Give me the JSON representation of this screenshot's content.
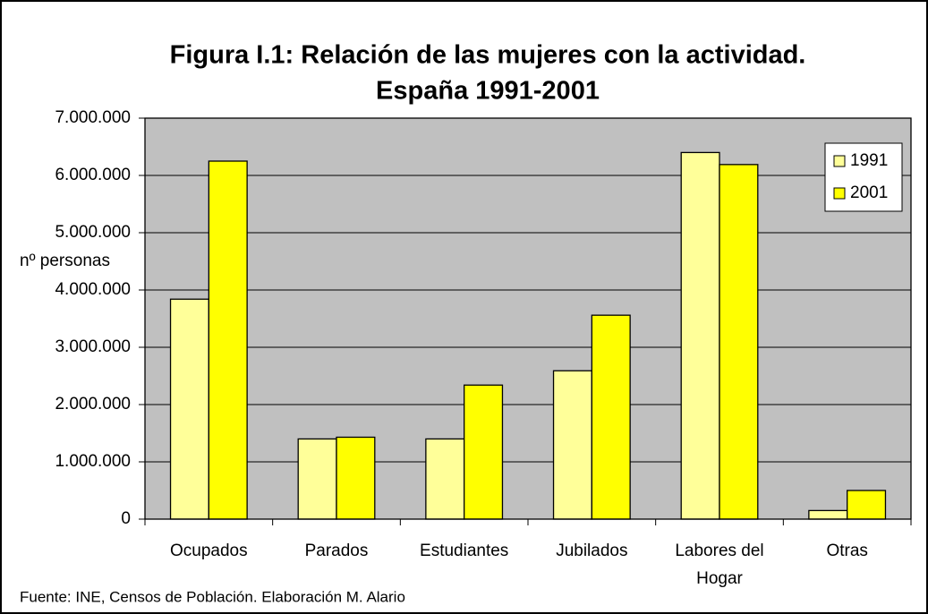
{
  "chart_data": {
    "type": "bar",
    "title": [
      "Figura I.1: Relación de las mujeres con la actividad.",
      "España 1991-2001"
    ],
    "y_label": "nº personas",
    "source": "Fuente: INE, Censos de Población. Elaboración M. Alario",
    "categories": [
      "Ocupados",
      "Parados",
      "Estudiantes",
      "Jubilados",
      "Labores del Hogar",
      "Otras"
    ],
    "series": [
      {
        "name": "1991",
        "color": "#ffff99",
        "values": [
          3840000,
          1400000,
          1400000,
          2590000,
          6400000,
          150000
        ]
      },
      {
        "name": "2001",
        "color": "#ffff00",
        "values": [
          6250000,
          1430000,
          2340000,
          3560000,
          6190000,
          500000
        ]
      }
    ],
    "ylim": [
      0,
      7000000
    ],
    "yticks": [
      0,
      {
        "value": 1000000,
        "label": "1.000.000"
      },
      {
        "value": 2000000,
        "label": "2.000.000"
      },
      {
        "value": 3000000,
        "label": "3.000.000"
      },
      {
        "value": 4000000,
        "label": "4.000.000"
      },
      {
        "value": 5000000,
        "label": "5.000.000"
      },
      {
        "value": 6000000,
        "label": "6.000.000"
      },
      {
        "value": 7000000,
        "label": "7.000.000"
      }
    ],
    "grid": true,
    "legend": "top-right"
  }
}
